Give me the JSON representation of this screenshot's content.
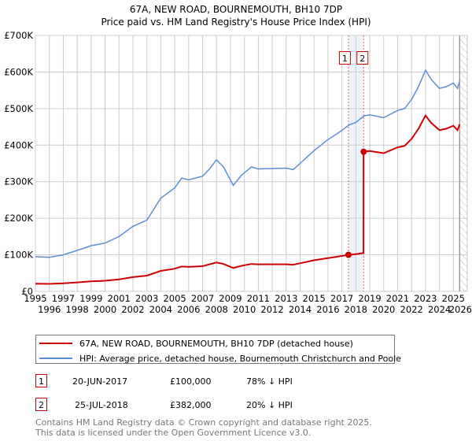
{
  "chart_data": {
    "type": "line",
    "title": "67A, NEW ROAD, BOURNEMOUTH, BH10 7DP",
    "subtitle": "Price paid vs. HM Land Registry's House Price Index (HPI)",
    "xlim": [
      1995,
      2026
    ],
    "ylim": [
      0,
      700000
    ],
    "x_ticks": [
      "1995",
      "1996",
      "1997",
      "1998",
      "1999",
      "2000",
      "2001",
      "2002",
      "2003",
      "2004",
      "2005",
      "2006",
      "2007",
      "2008",
      "2009",
      "2010",
      "2011",
      "2012",
      "2013",
      "2014",
      "2015",
      "2016",
      "2017",
      "2018",
      "2019",
      "2020",
      "2021",
      "2022",
      "2023",
      "2024",
      "2025",
      "2026"
    ],
    "y_ticks": [
      {
        "v": 0,
        "label": "£0"
      },
      {
        "v": 100000,
        "label": "£100K"
      },
      {
        "v": 200000,
        "label": "£200K"
      },
      {
        "v": 300000,
        "label": "£300K"
      },
      {
        "v": 400000,
        "label": "£400K"
      },
      {
        "v": 500000,
        "label": "£500K"
      },
      {
        "v": 600000,
        "label": "£600K"
      },
      {
        "v": 700000,
        "label": "£700K"
      }
    ],
    "grid": true,
    "series": [
      {
        "name": "67A, NEW ROAD, BOURNEMOUTH, BH10 7DP (detached house)",
        "color": "#cc0000",
        "x": [
          1995,
          1996,
          1997,
          1998,
          1999,
          2000,
          2001,
          2002,
          2003,
          2004,
          2005,
          2005.5,
          2006,
          2007,
          2007.5,
          2008,
          2008.5,
          2009.2,
          2009.8,
          2010.5,
          2011,
          2012,
          2013,
          2013.5,
          2014,
          2015,
          2016,
          2017,
          2017.47,
          2018,
          2018.55,
          2018.56,
          2019,
          2020,
          2021,
          2021.5,
          2022,
          2022.5,
          2023,
          2023.4,
          2024,
          2024.5,
          2025,
          2025.3,
          2025.45
        ],
        "y": [
          21000,
          20500,
          22000,
          24600,
          27500,
          29000,
          33000,
          39000,
          43000,
          56000,
          62000,
          68000,
          67000,
          69000,
          74000,
          79000,
          75000,
          64000,
          70000,
          75000,
          74000,
          74000,
          74000,
          73000,
          77000,
          85000,
          91000,
          97000,
          100000,
          101600,
          105000,
          382000,
          384000,
          378000,
          394000,
          398000,
          417000,
          445000,
          481000,
          461000,
          441000,
          445000,
          453000,
          441000,
          457000
        ]
      },
      {
        "name": "HPI: Average price, detached house, Bournemouth Christchurch and Poole",
        "color": "#5b8fd4",
        "x": [
          1995,
          1996,
          1997,
          1998,
          1999,
          2000,
          2001,
          2002,
          2003,
          2004,
          2005,
          2005.5,
          2006,
          2007,
          2007.5,
          2008,
          2008.5,
          2009.2,
          2009.8,
          2010.5,
          2011,
          2012,
          2013,
          2013.5,
          2014,
          2015,
          2016,
          2017,
          2017.5,
          2018,
          2018.6,
          2019,
          2020,
          2021,
          2021.5,
          2022,
          2022.5,
          2023,
          2023.4,
          2024,
          2024.5,
          2025,
          2025.3,
          2025.45
        ],
        "y": [
          95000,
          93000,
          100000,
          112000,
          125000,
          132000,
          150000,
          178000,
          195000,
          255000,
          283000,
          310000,
          305000,
          315000,
          335000,
          360000,
          340000,
          290000,
          318000,
          340000,
          335000,
          336000,
          337000,
          333000,
          350000,
          385000,
          415000,
          440000,
          455000,
          462000,
          480000,
          483000,
          475000,
          495000,
          500000,
          525000,
          560000,
          605000,
          580000,
          555000,
          560000,
          570000,
          555000,
          575000
        ]
      }
    ],
    "sales": [
      {
        "id": "1",
        "x": 2017.47,
        "y": 100000
      },
      {
        "id": "2",
        "x": 2018.56,
        "y": 382000
      }
    ],
    "forecast_hatch_from": 2025.45
  },
  "legend": [
    {
      "label": "67A, NEW ROAD, BOURNEMOUTH, BH10 7DP (detached house)",
      "color": "#cc0000"
    },
    {
      "label": "HPI: Average price, detached house, Bournemouth Christchurch and Poole",
      "color": "#5b8fd4"
    }
  ],
  "transactions": [
    {
      "id": "1",
      "date": "20-JUN-2017",
      "price": "£100,000",
      "hpi": "78% ↓ HPI"
    },
    {
      "id": "2",
      "date": "25-JUL-2018",
      "price": "£382,000",
      "hpi": "20% ↓ HPI"
    }
  ],
  "footer": [
    "Contains HM Land Registry data © Crown copyright and database right 2025.",
    "This data is licensed under the Open Government Licence v3.0."
  ]
}
